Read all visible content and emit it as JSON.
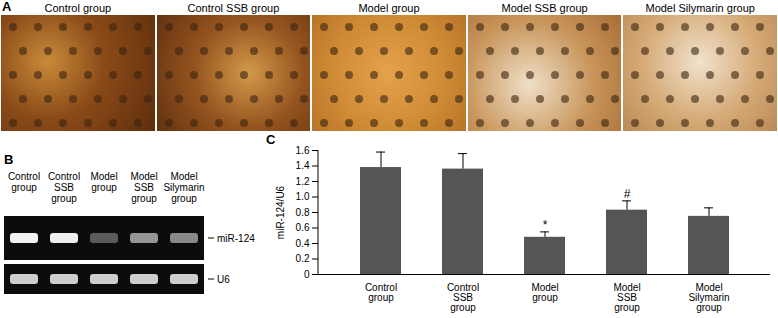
{
  "figure": {
    "panels": {
      "A": {
        "label": "A",
        "images": [
          "Control group",
          "Control SSB group",
          "Model group",
          "Model SSB group",
          "Model Silymarin group"
        ]
      },
      "B": {
        "label": "B",
        "lanes": [
          "Control group",
          "Control SSB group",
          "Model group",
          "Model SSB group",
          "Model Silymarin group"
        ],
        "bands": [
          "miR-124",
          "U6"
        ]
      },
      "C": {
        "label": "C"
      }
    }
  },
  "chart_data": {
    "type": "bar",
    "categories": [
      "Control group",
      "Control SSB group",
      "Model group",
      "Model SSB group",
      "Model Silymarin group"
    ],
    "values": [
      1.38,
      1.36,
      0.48,
      0.83,
      0.75
    ],
    "errors": [
      0.2,
      0.2,
      0.07,
      0.12,
      0.11
    ],
    "color": "#555555",
    "ylabel": "miR-124/U6",
    "ylim": [
      0,
      1.6
    ],
    "yticks": [
      0,
      0.2,
      0.4,
      0.6,
      0.8,
      {
        "value": 1,
        "label": "1.0"
      },
      1.2,
      1.4,
      1.6
    ],
    "grid": false,
    "annotations": [
      {
        "category": "Model group",
        "text": "*"
      },
      {
        "category": "Model SSB group",
        "text": "#"
      }
    ]
  }
}
